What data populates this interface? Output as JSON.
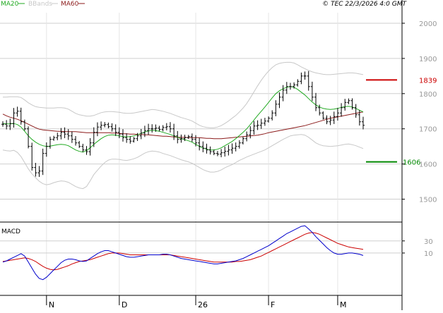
{
  "header": {
    "legend": [
      {
        "label": "MA20",
        "color": "#22aa22",
        "style": "line"
      },
      {
        "label": "BBands",
        "color": "#c8c8c8",
        "style": "line"
      },
      {
        "label": "MA60",
        "color": "#8b1a1a",
        "style": "line"
      }
    ],
    "copyright": "© TEC 22/3/2026 4:0 GMT"
  },
  "chart_data": {
    "type": "ohlc",
    "price_panel": {
      "y_ticks": [
        1500,
        1600,
        1700,
        1800,
        1900,
        2000
      ],
      "ylim": [
        1435,
        2030
      ],
      "grid": true,
      "bar_count": 100,
      "levels": [
        {
          "label": "1839",
          "value": 1839,
          "color": "#cc0000"
        },
        {
          "label": "1606",
          "value": 1606,
          "color": "#008800"
        }
      ],
      "close": [
        1713,
        1708,
        1715,
        1745,
        1750,
        1720,
        1700,
        1650,
        1590,
        1575,
        1580,
        1630,
        1650,
        1670,
        1675,
        1680,
        1690,
        1685,
        1680,
        1670,
        1660,
        1650,
        1640,
        1635,
        1660,
        1690,
        1705,
        1710,
        1712,
        1706,
        1700,
        1690,
        1685,
        1675,
        1670,
        1665,
        1672,
        1680,
        1688,
        1695,
        1700,
        1700,
        1702,
        1698,
        1704,
        1706,
        1700,
        1680,
        1670,
        1672,
        1675,
        1678,
        1670,
        1660,
        1650,
        1645,
        1640,
        1635,
        1630,
        1628,
        1632,
        1636,
        1640,
        1645,
        1650,
        1660,
        1672,
        1683,
        1695,
        1708,
        1710,
        1716,
        1722,
        1730,
        1745,
        1770,
        1790,
        1810,
        1820,
        1820,
        1825,
        1835,
        1850,
        1850,
        1820,
        1790,
        1760,
        1745,
        1730,
        1720,
        1725,
        1735,
        1745,
        1760,
        1775,
        1780,
        1760,
        1740,
        1720,
        1710
      ],
      "ma20": [
        1715,
        1714,
        1714,
        1715,
        1712,
        1705,
        1693,
        1680,
        1670,
        1662,
        1656,
        1652,
        1650,
        1651,
        1653,
        1655,
        1656,
        1655,
        1652,
        1646,
        1640,
        1636,
        1634,
        1638,
        1646,
        1656,
        1664,
        1672,
        1678,
        1682,
        1683,
        1682,
        1680,
        1678,
        1677,
        1678,
        1680,
        1683,
        1687,
        1691,
        1694,
        1696,
        1695,
        1693,
        1690,
        1687,
        1684,
        1680,
        1676,
        1672,
        1669,
        1666,
        1662,
        1656,
        1650,
        1645,
        1642,
        1640,
        1640,
        1642,
        1646,
        1652,
        1658,
        1664,
        1672,
        1681,
        1690,
        1700,
        1712,
        1725,
        1738,
        1750,
        1762,
        1775,
        1788,
        1800,
        1808,
        1814,
        1818,
        1820,
        1818,
        1812,
        1804,
        1796,
        1786,
        1776,
        1768,
        1762,
        1758,
        1756,
        1755,
        1756,
        1758,
        1761,
        1763,
        1764,
        1762,
        1758,
        1753,
        1748
      ],
      "ma60": [
        1742,
        1737,
        1733,
        1730,
        1727,
        1723,
        1718,
        1713,
        1708,
        1703,
        1699,
        1697,
        1696,
        1695,
        1694,
        1693,
        1693,
        1692,
        1692,
        1692,
        1692,
        1691,
        1690,
        1689,
        1689,
        1689,
        1689,
        1689,
        1689,
        1689,
        1688,
        1688,
        1687,
        1686,
        1686,
        1685,
        1685,
        1684,
        1684,
        1683,
        1683,
        1682,
        1681,
        1680,
        1679,
        1679,
        1678,
        1677,
        1676,
        1676,
        1676,
        1675,
        1675,
        1675,
        1675,
        1674,
        1673,
        1673,
        1672,
        1672,
        1672,
        1673,
        1674,
        1675,
        1676,
        1677,
        1678,
        1679,
        1680,
        1681,
        1682,
        1684,
        1686,
        1689,
        1691,
        1693,
        1695,
        1697,
        1699,
        1701,
        1703,
        1705,
        1707,
        1709,
        1712,
        1715,
        1718,
        1721,
        1724,
        1727,
        1730,
        1732,
        1734,
        1736,
        1738,
        1740,
        1742,
        1744,
        1746,
        1748
      ],
      "bb_upper": [
        1790,
        1790,
        1791,
        1791,
        1791,
        1789,
        1782,
        1774,
        1768,
        1763,
        1761,
        1760,
        1759,
        1759,
        1759,
        1760,
        1760,
        1759,
        1756,
        1750,
        1744,
        1740,
        1738,
        1736,
        1736,
        1738,
        1742,
        1746,
        1748,
        1749,
        1749,
        1748,
        1747,
        1745,
        1744,
        1744,
        1745,
        1747,
        1749,
        1751,
        1753,
        1755,
        1754,
        1752,
        1750,
        1747,
        1744,
        1740,
        1736,
        1732,
        1729,
        1726,
        1722,
        1716,
        1710,
        1706,
        1704,
        1703,
        1703,
        1705,
        1709,
        1715,
        1722,
        1730,
        1738,
        1748,
        1759,
        1772,
        1788,
        1805,
        1822,
        1838,
        1852,
        1864,
        1874,
        1882,
        1886,
        1888,
        1889,
        1889,
        1887,
        1882,
        1876,
        1871,
        1866,
        1862,
        1859,
        1857,
        1855,
        1854,
        1854,
        1855,
        1856,
        1857,
        1858,
        1859,
        1859,
        1858,
        1856,
        1854
      ],
      "bb_lower": [
        1640,
        1638,
        1637,
        1639,
        1633,
        1621,
        1604,
        1586,
        1572,
        1561,
        1551,
        1544,
        1541,
        1543,
        1547,
        1550,
        1552,
        1551,
        1548,
        1542,
        1536,
        1532,
        1530,
        1536,
        1552,
        1570,
        1582,
        1594,
        1604,
        1611,
        1614,
        1614,
        1613,
        1611,
        1610,
        1612,
        1615,
        1619,
        1625,
        1631,
        1635,
        1637,
        1636,
        1634,
        1630,
        1627,
        1624,
        1620,
        1616,
        1612,
        1609,
        1606,
        1602,
        1596,
        1590,
        1584,
        1580,
        1577,
        1577,
        1579,
        1583,
        1589,
        1594,
        1598,
        1604,
        1610,
        1615,
        1620,
        1624,
        1628,
        1632,
        1636,
        1640,
        1646,
        1652,
        1658,
        1664,
        1670,
        1675,
        1680,
        1682,
        1683,
        1684,
        1682,
        1676,
        1668,
        1660,
        1655,
        1652,
        1651,
        1650,
        1651,
        1652,
        1654,
        1656,
        1657,
        1655,
        1652,
        1648,
        1644
      ]
    },
    "macd_panel": {
      "title": "MACD",
      "y_ticks": [
        {
          "label": "30",
          "value": 30
        },
        {
          "label": "10",
          "value": 10
        }
      ],
      "ylim": [
        -60,
        60
      ],
      "macd": [
        -5,
        -3,
        0,
        3,
        6,
        9,
        5,
        -5,
        -15,
        -25,
        -32,
        -34,
        -30,
        -24,
        -18,
        -12,
        -6,
        -2,
        0,
        0,
        -1,
        -3,
        -4,
        -3,
        1,
        5,
        9,
        12,
        14,
        14,
        12,
        10,
        8,
        6,
        4,
        3,
        3,
        4,
        5,
        6,
        7,
        7,
        7,
        7,
        8,
        8,
        7,
        5,
        3,
        1,
        0,
        -1,
        -2,
        -3,
        -4,
        -5,
        -6,
        -7,
        -8,
        -8,
        -7,
        -6,
        -5,
        -4,
        -3,
        -1,
        1,
        4,
        7,
        10,
        13,
        16,
        19,
        22,
        26,
        30,
        34,
        38,
        42,
        45,
        48,
        51,
        54,
        55,
        50,
        44,
        37,
        31,
        25,
        19,
        14,
        10,
        8,
        8,
        9,
        10,
        10,
        9,
        8,
        6
      ],
      "signal": [
        -4,
        -3,
        -2,
        -1,
        0,
        1,
        2,
        1,
        -1,
        -4,
        -8,
        -12,
        -15,
        -17,
        -18,
        -17,
        -15,
        -13,
        -11,
        -8,
        -6,
        -4,
        -3,
        -2,
        -1,
        1,
        3,
        5,
        7,
        9,
        10,
        10,
        10,
        9,
        8,
        7,
        7,
        7,
        7,
        7,
        7,
        7,
        7,
        7,
        7,
        7,
        7,
        6,
        5,
        4,
        3,
        2,
        1,
        0,
        -1,
        -2,
        -3,
        -4,
        -5,
        -5,
        -5,
        -5,
        -5,
        -5,
        -4,
        -4,
        -3,
        -2,
        -1,
        1,
        3,
        5,
        8,
        11,
        14,
        17,
        20,
        23,
        26,
        29,
        32,
        35,
        38,
        41,
        43,
        44,
        43,
        41,
        38,
        35,
        32,
        29,
        26,
        24,
        22,
        20,
        19,
        18,
        17,
        16
      ]
    },
    "x_ticks": [
      {
        "label": "N",
        "index": 12
      },
      {
        "label": "D",
        "index": 32
      },
      {
        "label": "26",
        "index": 53
      },
      {
        "label": "F",
        "index": 73
      },
      {
        "label": "M",
        "index": 92
      }
    ]
  }
}
